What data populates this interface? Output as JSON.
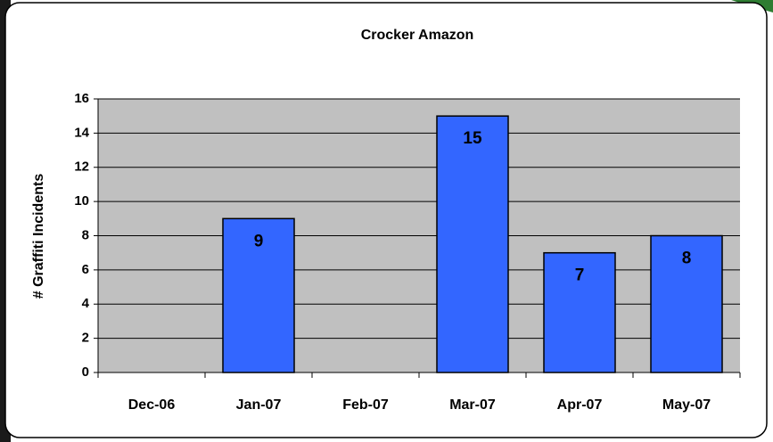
{
  "chart_data": {
    "type": "bar",
    "title": "Crocker Amazon",
    "y_label": "# Graffiti Incidents",
    "categories": [
      "Dec-06",
      "Jan-07",
      "Feb-07",
      "Mar-07",
      "Apr-07",
      "May-07"
    ],
    "values": [
      null,
      9,
      null,
      15,
      7,
      8
    ],
    "color": "#3366ff",
    "ylim": [
      0,
      16
    ],
    "yticks": [
      0,
      2,
      4,
      6,
      8,
      10,
      12,
      14,
      16
    ],
    "grid": true
  }
}
